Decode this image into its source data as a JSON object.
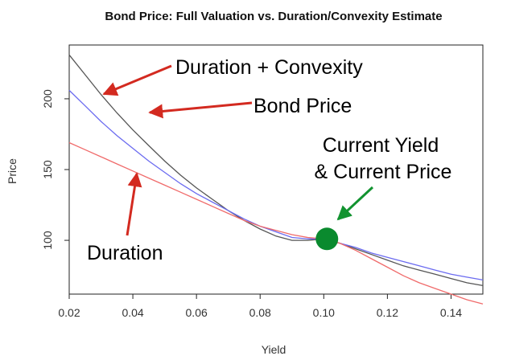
{
  "chart_data": {
    "type": "line",
    "title": "Bond Price: Full Valuation vs. Duration/Convexity Estimate",
    "xlabel": "Yield",
    "ylabel": "Price",
    "xlim": [
      0.02,
      0.15
    ],
    "ylim": [
      62,
      238
    ],
    "x_ticks": [
      0.02,
      0.04,
      0.06,
      0.08,
      0.1,
      0.12,
      0.14
    ],
    "x_tick_labels": [
      "0.02",
      "0.04",
      "0.06",
      "0.08",
      "0.10",
      "0.12",
      "0.14"
    ],
    "y_ticks": [
      100,
      150,
      200
    ],
    "y_tick_labels": [
      "100",
      "150",
      "200"
    ],
    "grid": false,
    "x": [
      0.02,
      0.025,
      0.03,
      0.035,
      0.04,
      0.045,
      0.05,
      0.055,
      0.06,
      0.065,
      0.07,
      0.075,
      0.08,
      0.085,
      0.09,
      0.095,
      0.1,
      0.105,
      0.11,
      0.115,
      0.12,
      0.125,
      0.13,
      0.135,
      0.14,
      0.145,
      0.15
    ],
    "series": [
      {
        "name": "Bond Price",
        "color": "#555555",
        "values": [
          231,
          217,
          203,
          190,
          178,
          167,
          156,
          146,
          137,
          129,
          121,
          114,
          108,
          103,
          100,
          100,
          101,
          98,
          94,
          90,
          86,
          82,
          79,
          76,
          73,
          70,
          68
        ]
      },
      {
        "name": "Duration + Convexity",
        "color": "#6b6bf0",
        "values": [
          206,
          195,
          184,
          174,
          165,
          156,
          148,
          140,
          133,
          127,
          121,
          115,
          110,
          106,
          102,
          101,
          101,
          98,
          95,
          91,
          88,
          85,
          82,
          79,
          76,
          74,
          72
        ]
      },
      {
        "name": "Duration",
        "color": "#f06b6b",
        "values": [
          169,
          164,
          159,
          154,
          149,
          144,
          139,
          134,
          129,
          124,
          119,
          114,
          110,
          107,
          104,
          102,
          101,
          98,
          93,
          87,
          81,
          75,
          70,
          66,
          62,
          58,
          55
        ]
      }
    ],
    "current_point": {
      "x": 0.101,
      "y": 101,
      "color": "#0a8a2e"
    },
    "annotations": [
      {
        "text": "Duration + Convexity",
        "color": "#d32a20"
      },
      {
        "text": "Bond Price",
        "color": "#d32a20"
      },
      {
        "text": "Current Yield",
        "color": "#129330"
      },
      {
        "text": "& Current Price",
        "color": "#129330"
      },
      {
        "text": "Duration",
        "color": "#d32a20"
      }
    ]
  }
}
